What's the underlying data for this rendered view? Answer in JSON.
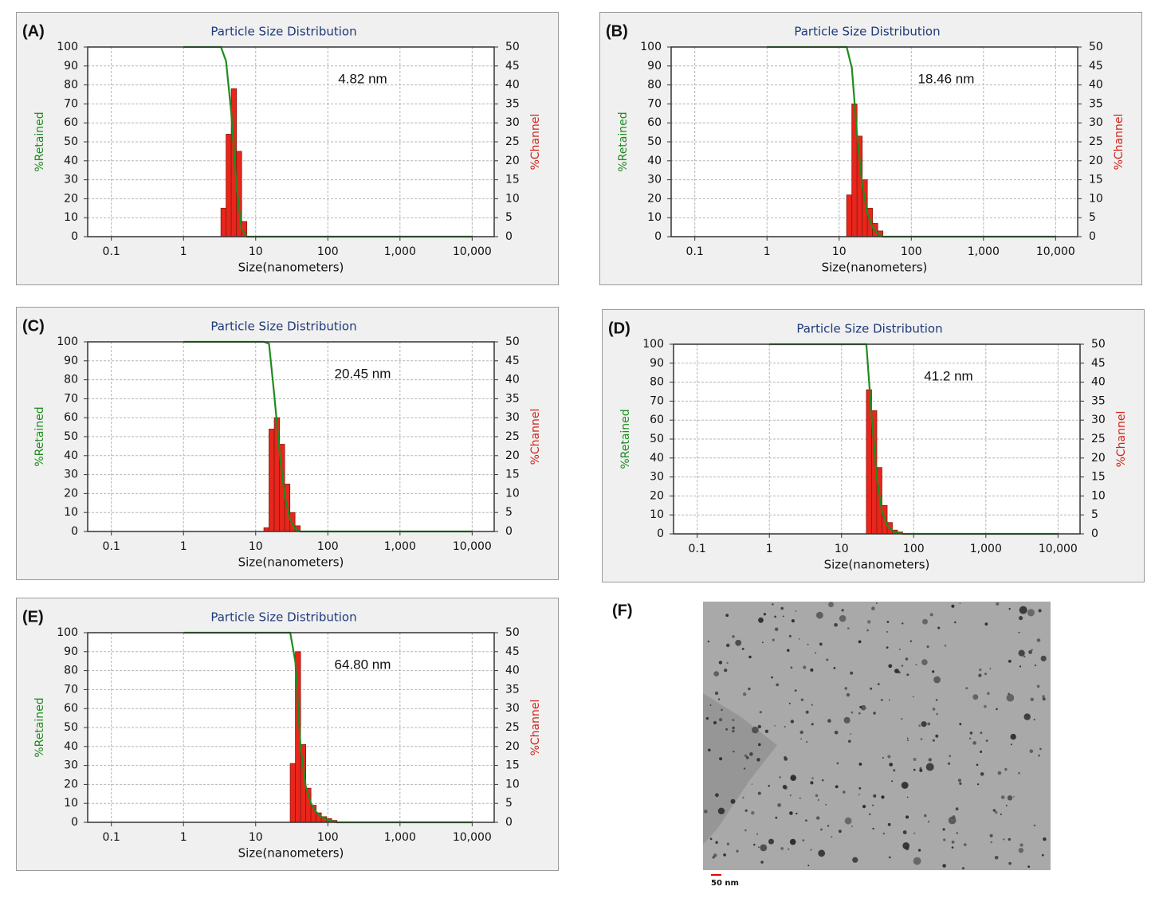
{
  "chart_data": [
    {
      "type": "histogram",
      "panel": "(A)",
      "title": "Particle Size Distribution",
      "annotation": "4.82 nm",
      "xlabel": "Size(nanometers)",
      "ylabel": "%Retained",
      "y2label": "%Channel",
      "xscale": "log",
      "grid": true,
      "xlim": [
        0.047,
        20200
      ],
      "ylim": [
        0,
        100
      ],
      "y2lim": [
        0,
        50
      ],
      "xticks": [
        0.1,
        1,
        10,
        100,
        {
          "value": 1000,
          "label": "1,000"
        },
        {
          "value": 10000,
          "label": "10,000"
        }
      ],
      "yticks": [
        0,
        10,
        20,
        30,
        40,
        50,
        60,
        70,
        80,
        90,
        100
      ],
      "y2ticks": [
        0,
        5,
        10,
        15,
        20,
        25,
        30,
        35,
        40,
        45,
        50
      ],
      "series": [
        {
          "axis": "y2",
          "color": "#e8261c",
          "bins": [
            3.3,
            3.89,
            4.59,
            5.42,
            6.39,
            7.54
          ],
          "values": [
            7.5,
            27,
            39,
            22.5,
            4
          ]
        },
        {
          "color": "#1e8c1e",
          "x": [
            1,
            3.3,
            3.89,
            4.59,
            5.42,
            6.39,
            7.54,
            10000
          ],
          "values": [
            100,
            100,
            92.5,
            65.5,
            26.5,
            4,
            0,
            0
          ]
        }
      ]
    },
    {
      "type": "histogram",
      "panel": "(B)",
      "title": "Particle Size Distribution",
      "annotation": "18.46 nm",
      "xlabel": "Size(nanometers)",
      "ylabel": "%Retained",
      "y2label": "%Channel",
      "xscale": "log",
      "grid": true,
      "xlim": [
        0.047,
        20200
      ],
      "ylim": [
        0,
        100
      ],
      "y2lim": [
        0,
        50
      ],
      "xticks": [
        0.1,
        1,
        10,
        100,
        {
          "value": 1000,
          "label": "1,000"
        },
        {
          "value": 10000,
          "label": "10,000"
        }
      ],
      "yticks": [
        0,
        10,
        20,
        30,
        40,
        50,
        60,
        70,
        80,
        90,
        100
      ],
      "y2ticks": [
        0,
        5,
        10,
        15,
        20,
        25,
        30,
        35,
        40,
        45,
        50
      ],
      "series": [
        {
          "axis": "y2",
          "color": "#e8261c",
          "bins": [
            12.7,
            15.0,
            17.7,
            20.9,
            24.6,
            29.0,
            34.3,
            40.4
          ],
          "values": [
            11,
            35,
            26.5,
            15,
            7.5,
            3.5,
            1.5
          ]
        },
        {
          "color": "#1e8c1e",
          "x": [
            1,
            12.7,
            15.0,
            17.7,
            20.9,
            24.6,
            29.0,
            34.3,
            40.4,
            10000
          ],
          "values": [
            100,
            100,
            89,
            54,
            27.5,
            12.5,
            5,
            1.5,
            0,
            0
          ]
        }
      ]
    },
    {
      "type": "histogram",
      "panel": "(C)",
      "title": "Particle Size Distribution",
      "annotation": "20.45 nm",
      "xlabel": "Size(nanometers)",
      "ylabel": "%Retained",
      "y2label": "%Channel",
      "xscale": "log",
      "grid": true,
      "xlim": [
        0.047,
        20200
      ],
      "ylim": [
        0,
        100
      ],
      "y2lim": [
        0,
        50
      ],
      "xticks": [
        0.1,
        1,
        10,
        100,
        {
          "value": 1000,
          "label": "1,000"
        },
        {
          "value": 10000,
          "label": "10,000"
        }
      ],
      "yticks": [
        0,
        10,
        20,
        30,
        40,
        50,
        60,
        70,
        80,
        90,
        100
      ],
      "y2ticks": [
        0,
        5,
        10,
        15,
        20,
        25,
        30,
        35,
        40,
        45,
        50
      ],
      "series": [
        {
          "axis": "y2",
          "color": "#e8261c",
          "bins": [
            13.0,
            15.3,
            18.1,
            21.4,
            25.2,
            29.8,
            35.1,
            41.4
          ],
          "values": [
            1,
            27,
            30,
            23,
            12.5,
            5,
            1.5
          ]
        },
        {
          "color": "#1e8c1e",
          "x": [
            1,
            13.0,
            15.3,
            18.1,
            21.4,
            25.2,
            29.8,
            35.1,
            41.4,
            10000
          ],
          "values": [
            100,
            100,
            99,
            72,
            42,
            19,
            6.5,
            1.5,
            0,
            0
          ]
        }
      ]
    },
    {
      "type": "histogram",
      "panel": "(D)",
      "title": "Particle Size Distribution",
      "annotation": "41.2 nm",
      "xlabel": "Size(nanometers)",
      "ylabel": "%Retained",
      "y2label": "%Channel",
      "xscale": "log",
      "grid": true,
      "xlim": [
        0.047,
        20200
      ],
      "ylim": [
        0,
        100
      ],
      "y2lim": [
        0,
        50
      ],
      "xticks": [
        0.1,
        1,
        10,
        100,
        {
          "value": 1000,
          "label": "1,000"
        },
        {
          "value": 10000,
          "label": "10,000"
        }
      ],
      "yticks": [
        0,
        10,
        20,
        30,
        40,
        50,
        60,
        70,
        80,
        90,
        100
      ],
      "y2ticks": [
        0,
        5,
        10,
        15,
        20,
        25,
        30,
        35,
        40,
        45,
        50
      ],
      "series": [
        {
          "axis": "y2",
          "color": "#e8261c",
          "bins": [
            22.1,
            26.1,
            30.8,
            36.3,
            42.9,
            50.6,
            59.7,
            70.4
          ],
          "values": [
            38,
            32.5,
            17.5,
            7.5,
            3,
            1,
            0.5
          ]
        },
        {
          "color": "#1e8c1e",
          "x": [
            1,
            22.1,
            26.1,
            30.8,
            36.3,
            42.9,
            50.6,
            59.7,
            70.4,
            10000
          ],
          "values": [
            100,
            100,
            62,
            29.5,
            12,
            4.5,
            1.5,
            0.5,
            0,
            0
          ]
        }
      ]
    },
    {
      "type": "histogram",
      "panel": "(E)",
      "title": "Particle Size Distribution",
      "annotation": "64.80 nm",
      "xlabel": "Size(nanometers)",
      "ylabel": "%Retained",
      "y2label": "%Channel",
      "xscale": "log",
      "grid": true,
      "xlim": [
        0.047,
        20200
      ],
      "ylim": [
        0,
        100
      ],
      "y2lim": [
        0,
        50
      ],
      "xticks": [
        0.1,
        1,
        10,
        100,
        {
          "value": 1000,
          "label": "1,000"
        },
        {
          "value": 10000,
          "label": "10,000"
        }
      ],
      "yticks": [
        0,
        10,
        20,
        30,
        40,
        50,
        60,
        70,
        80,
        90,
        100
      ],
      "y2ticks": [
        0,
        5,
        10,
        15,
        20,
        25,
        30,
        35,
        40,
        45,
        50
      ],
      "series": [
        {
          "axis": "y2",
          "color": "#e8261c",
          "bins": [
            30.1,
            35.5,
            41.9,
            49.5,
            58.4,
            68.9,
            81.3,
            95.9,
            113.2,
            133.6
          ],
          "values": [
            15.5,
            45,
            20.5,
            9,
            4.5,
            2.5,
            1.5,
            1,
            0.5
          ]
        },
        {
          "color": "#1e8c1e",
          "x": [
            1,
            30.1,
            35.5,
            41.9,
            49.5,
            58.4,
            68.9,
            81.3,
            95.9,
            113.2,
            133.6,
            10000
          ],
          "values": [
            100,
            100,
            84.5,
            39.5,
            19,
            10,
            5.5,
            3,
            1.5,
            0.5,
            0,
            0
          ]
        }
      ]
    }
  ],
  "image": {
    "label": "(F)",
    "scale_bar": "50 nm"
  }
}
